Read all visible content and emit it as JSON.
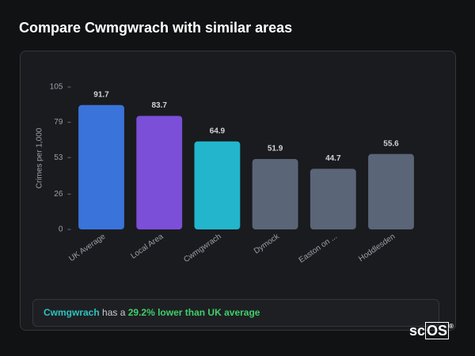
{
  "title": "Compare Cwmgwrach with similar areas",
  "chart_data": {
    "type": "bar",
    "y_label": "Crimes per 1,000",
    "categories": [
      "UK Average",
      "Local Area",
      "Cwmgwrach",
      "Dymock",
      "Easton on ...",
      "Hoddlesden"
    ],
    "values": [
      91.7,
      83.7,
      64.9,
      51.9,
      44.7,
      55.6
    ],
    "colors": [
      "#3a73d9",
      "#7b4fd8",
      "#22b5cc",
      "#5a6578",
      "#5a6578",
      "#5a6578"
    ],
    "ylim": [
      0,
      105
    ],
    "yticks": [
      0,
      26,
      53,
      79,
      105
    ]
  },
  "insight": {
    "area": "Cwmgwrach",
    "middle": "has a",
    "highlight": "29.2% lower than UK average"
  },
  "logo": {
    "prefix": "sc",
    "suffix": "OS",
    "mark": "®"
  }
}
